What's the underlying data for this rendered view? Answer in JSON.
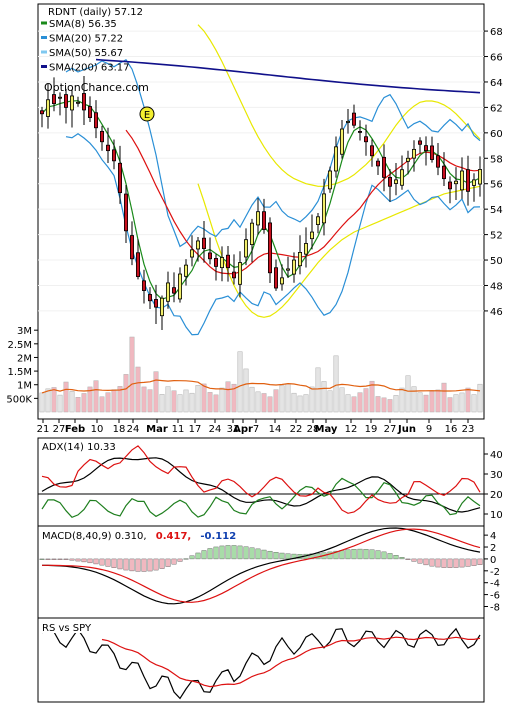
{
  "chart_data": [
    {
      "panel": "price",
      "type": "candlestick",
      "title": "RDNT (daily) 57.12",
      "watermark": "OptionChance.com",
      "event_marker": "E",
      "y_ticks": [
        "68",
        "66",
        "64",
        "62",
        "60",
        "58",
        "56",
        "54",
        "52",
        "50",
        "48",
        "46"
      ],
      "ylim": [
        44.5,
        69.5
      ],
      "legend": [
        {
          "label": "SMA(8) 56.35",
          "color": "#1a8a1a"
        },
        {
          "label": "SMA(20) 57.22",
          "color": "#2a8fd6"
        },
        {
          "label": "SMA(50) 55.67",
          "color": "#7fc8f0"
        },
        {
          "label": "SMA(200) 63.17",
          "color": "#10108a"
        }
      ],
      "x_labels": [
        "21",
        "27",
        "Feb",
        "10",
        "18",
        "24",
        "Mar",
        "11",
        "17",
        "24",
        "31",
        "Apr",
        "7",
        "14",
        "22",
        "28",
        "May",
        "12",
        "19",
        "27",
        "Jun",
        "9",
        "16",
        "23"
      ],
      "close": [
        61.5,
        62.6,
        62.3,
        62.8,
        62.0,
        62.9,
        62.4,
        61.8,
        61.2,
        60.4,
        59.3,
        58.6,
        57.8,
        55.3,
        52.3,
        50.1,
        48.7,
        47.6,
        46.8,
        46.3,
        47.0,
        48.2,
        47.4,
        48.9,
        49.6,
        50.8,
        51.5,
        50.9,
        50.1,
        49.5,
        50.2,
        49.4,
        48.6,
        49.8,
        51.6,
        52.9,
        53.8,
        52.4,
        49.0,
        47.8,
        48.6,
        49.3,
        50.0,
        50.6,
        51.3,
        52.2,
        53.4,
        55.2,
        57.0,
        58.9,
        60.3,
        60.9,
        60.6,
        60.1,
        59.3,
        58.2,
        57.4,
        56.5,
        55.8,
        56.3,
        57.1,
        58.0,
        58.7,
        59.1,
        58.6,
        57.9,
        57.3,
        56.4,
        55.6,
        56.2,
        57.0,
        55.4,
        56.3,
        57.12
      ],
      "bb_upper": [
        68.5,
        68.0,
        67.3,
        66.5,
        65.6,
        64.6,
        63.6,
        62.6,
        61.6,
        60.6,
        59.7,
        58.9,
        58.2,
        57.6,
        57.1,
        56.7,
        56.4,
        56.2,
        56.0,
        55.9,
        55.8,
        55.8,
        55.9,
        56.0,
        56.2,
        56.4,
        56.7,
        57.1,
        57.5,
        58.0,
        58.6,
        59.2,
        59.9,
        60.6,
        61.2,
        61.7,
        62.1,
        62.4,
        62.5,
        62.5,
        62.4,
        62.2,
        61.9,
        61.5,
        61.0,
        60.5,
        60.0,
        59.5
      ],
      "bb_lower": [
        56.0,
        54.6,
        53.1,
        51.6,
        50.3,
        49.1,
        48.0,
        47.1,
        46.4,
        45.9,
        45.6,
        45.5,
        45.6,
        45.9,
        46.3,
        46.8,
        47.4,
        48.0,
        48.6,
        49.2,
        49.8,
        50.3,
        50.8,
        51.2,
        51.6,
        51.9,
        52.2,
        52.4,
        52.6,
        52.8,
        53.0,
        53.2,
        53.4,
        53.6,
        53.8,
        54.0,
        54.2,
        54.4,
        54.6,
        54.8,
        55.0,
        55.2,
        55.3,
        55.4,
        55.5,
        55.6,
        55.7,
        55.8
      ]
    },
    {
      "panel": "volume",
      "type": "bar",
      "y_ticks": [
        "3M",
        "2.5M",
        "2M",
        "1.5M",
        "1M",
        "500K"
      ],
      "ylim": [
        0,
        3300000
      ],
      "values": [
        700000,
        850000,
        900000,
        620000,
        1100000,
        760000,
        540000,
        680000,
        920000,
        1150000,
        560000,
        710000,
        820000,
        940000,
        1380000,
        2750000,
        1650000,
        920000,
        820000,
        1480000,
        650000,
        930000,
        780000,
        640000,
        810000,
        690000,
        980000,
        1030000,
        720000,
        630000,
        880000,
        1110000,
        1020000,
        2210000,
        1580000,
        910000,
        740000,
        680000,
        560000,
        820000,
        970000,
        1030000,
        690000,
        590000,
        640000,
        920000,
        1620000,
        1120000,
        780000,
        2060000,
        890000,
        640000,
        560000,
        710000,
        860000,
        1130000,
        570000,
        520000,
        460000,
        610000,
        880000,
        1330000,
        930000,
        710000,
        620000,
        760000,
        810000,
        1060000,
        530000,
        640000,
        700000,
        880000,
        640000,
        1020000
      ]
    },
    {
      "panel": "adx",
      "type": "line",
      "title": "ADX(14) 10.33",
      "y_ticks": [
        "40",
        "30",
        "20",
        "10"
      ],
      "ylim": [
        5,
        47
      ]
    },
    {
      "panel": "macd",
      "type": "line",
      "title_prefix": "MACD(8,40,9) 0.310,",
      "title_mid": "0.417,",
      "title_end": "-0.112",
      "y_ticks": [
        "4",
        "2",
        "0",
        "-2",
        "-4",
        "-6",
        "-8"
      ],
      "ylim": [
        -9.6,
        5.2
      ]
    },
    {
      "panel": "rs",
      "type": "line",
      "title": "RS vs SPY"
    }
  ],
  "colors": {
    "up_candle": "#f2ee6a",
    "down_candle": "#c8101e",
    "sma8": "#1a8a1a",
    "sma20": "#2a8fd6",
    "sma50": "#7fc8f0",
    "sma200": "#10108a",
    "trend": "#dd1111",
    "bollinger": "#e8e800",
    "vol_up": "#e4e4e4",
    "vol_down": "#f0b8c0",
    "vol_avg": "#e06010",
    "adx": "#000000",
    "plus_di": "#1f7f1f",
    "minus_di": "#dd1111",
    "macd_hist_up": "#a8dca8",
    "macd_hist_down": "#f0b8c0",
    "macd_value_red": "#dd1111",
    "macd_value_blue": "#1040b0"
  }
}
